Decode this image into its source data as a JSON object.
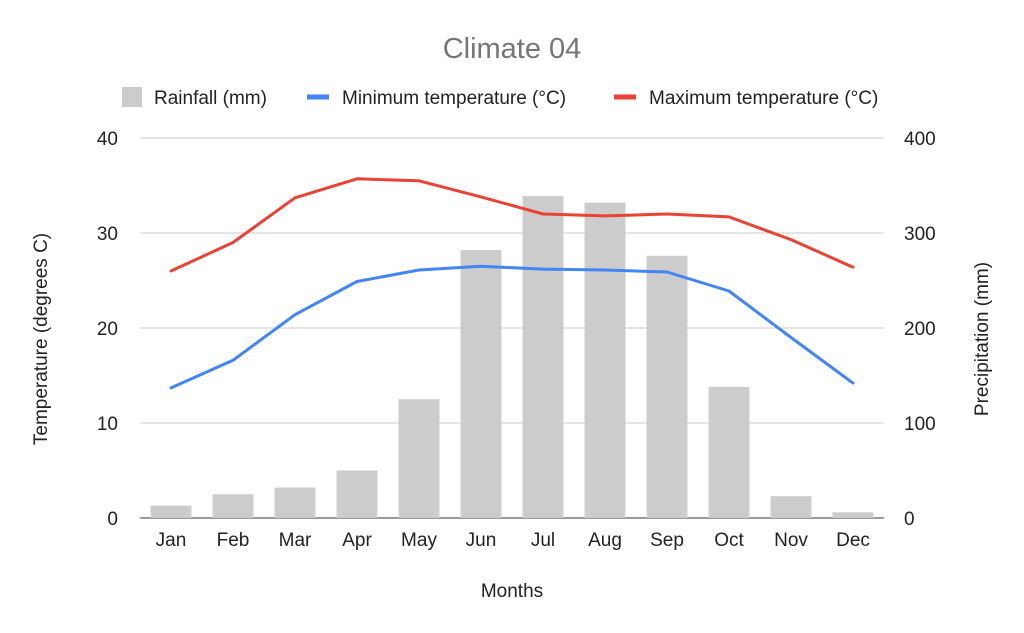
{
  "chart_data": {
    "type": "bar",
    "title": "Climate 04",
    "xlabel": "Months",
    "ylabel_left": "Temperature (degrees C)",
    "ylabel_right": "Precipitation (mm)",
    "categories": [
      "Jan",
      "Feb",
      "Mar",
      "Apr",
      "May",
      "Jun",
      "Jul",
      "Aug",
      "Sep",
      "Oct",
      "Nov",
      "Dec"
    ],
    "ylim_left": [
      0,
      40
    ],
    "ylim_right": [
      0,
      400
    ],
    "yticks_left": [
      "0",
      "10",
      "20",
      "30",
      "40"
    ],
    "yticks_right": [
      "0",
      "100",
      "200",
      "300",
      "400"
    ],
    "grid": true,
    "legend_position": "top",
    "series": [
      {
        "name": "Rainfall (mm)",
        "type": "bar",
        "axis": "right",
        "color": "#cccccc",
        "values": [
          13,
          25,
          32,
          50,
          125,
          282,
          339,
          332,
          276,
          138,
          23,
          6
        ]
      },
      {
        "name": "Minimum temperature (°C)",
        "type": "line",
        "axis": "left",
        "color": "#4285f4",
        "values": [
          13.7,
          16.6,
          21.4,
          24.9,
          26.1,
          26.5,
          26.2,
          26.1,
          25.9,
          23.9,
          19.0,
          14.2
        ]
      },
      {
        "name": "Maximum temperature (°C)",
        "type": "line",
        "axis": "left",
        "color": "#ea4335",
        "values": [
          26.0,
          29.0,
          33.7,
          35.7,
          35.5,
          33.8,
          32.0,
          31.8,
          32.0,
          31.7,
          29.3,
          26.4
        ]
      }
    ]
  }
}
